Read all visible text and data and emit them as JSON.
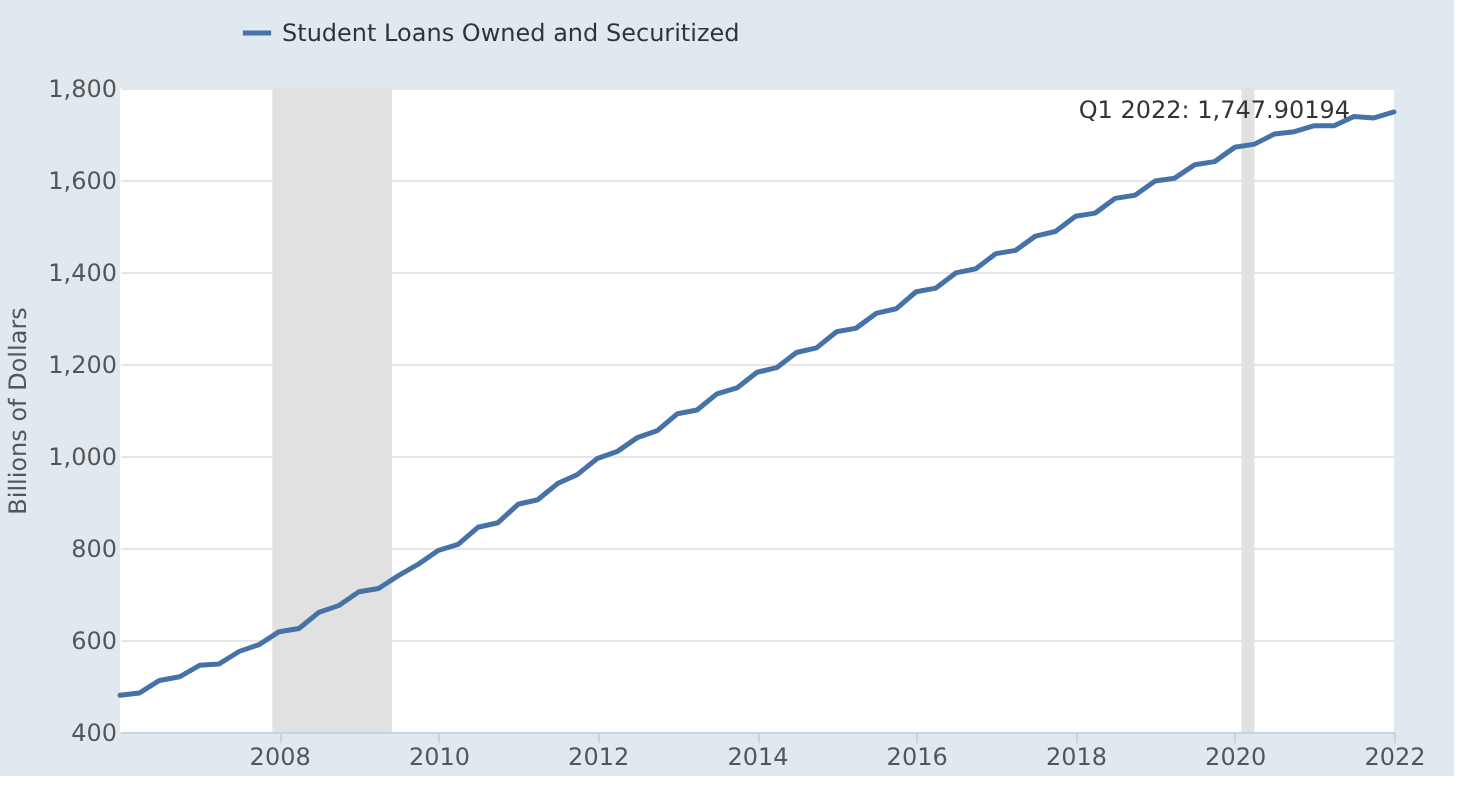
{
  "chart_data": {
    "type": "line",
    "ylabel": "Billions of Dollars",
    "x": [
      "2006-01",
      "2006-04",
      "2006-07",
      "2006-10",
      "2007-01",
      "2007-04",
      "2007-07",
      "2007-10",
      "2008-01",
      "2008-04",
      "2008-07",
      "2008-10",
      "2009-01",
      "2009-04",
      "2009-07",
      "2009-10",
      "2010-01",
      "2010-04",
      "2010-07",
      "2010-10",
      "2011-01",
      "2011-04",
      "2011-07",
      "2011-10",
      "2012-01",
      "2012-04",
      "2012-07",
      "2012-10",
      "2013-01",
      "2013-04",
      "2013-07",
      "2013-10",
      "2014-01",
      "2014-04",
      "2014-07",
      "2014-10",
      "2015-01",
      "2015-04",
      "2015-07",
      "2015-10",
      "2016-01",
      "2016-04",
      "2016-07",
      "2016-10",
      "2017-01",
      "2017-04",
      "2017-07",
      "2017-10",
      "2018-01",
      "2018-04",
      "2018-07",
      "2018-10",
      "2019-01",
      "2019-04",
      "2019-07",
      "2019-10",
      "2020-01",
      "2020-04",
      "2020-07",
      "2020-10",
      "2021-01",
      "2021-04",
      "2021-07",
      "2021-10",
      "2022-01"
    ],
    "series": [
      {
        "name": "Student Loans Owned and Securitized",
        "color": "#4572a7",
        "values": [
          480,
          485,
          512,
          520,
          545,
          548,
          575,
          590,
          618,
          625,
          660,
          675,
          705,
          712,
          740,
          765,
          795,
          808,
          845,
          855,
          895,
          905,
          940,
          960,
          995,
          1010,
          1040,
          1055,
          1092,
          1100,
          1135,
          1148,
          1182,
          1192,
          1225,
          1235,
          1270,
          1278,
          1310,
          1320,
          1357,
          1365,
          1398,
          1407,
          1440,
          1447,
          1478,
          1488,
          1521,
          1528,
          1560,
          1567,
          1598,
          1604,
          1633,
          1640,
          1671,
          1678,
          1700,
          1705,
          1718,
          1718,
          1738,
          1735,
          1747.90194
        ]
      }
    ],
    "xlim": [
      "2006-01",
      "2022-01"
    ],
    "xticks": [
      "2008",
      "2010",
      "2012",
      "2014",
      "2016",
      "2018",
      "2020",
      "2022"
    ],
    "ylim": [
      400,
      1800
    ],
    "yticks": [
      {
        "value": 400,
        "label": "400"
      },
      {
        "value": 600,
        "label": "600"
      },
      {
        "value": 800,
        "label": "800"
      },
      {
        "value": 1000,
        "label": "1,000"
      },
      {
        "value": 1200,
        "label": "1,200"
      },
      {
        "value": 1400,
        "label": "1,400"
      },
      {
        "value": 1600,
        "label": "1,600"
      },
      {
        "value": 1800,
        "label": "1,800"
      }
    ],
    "bands": [
      {
        "axis": "x",
        "from": "2007-12",
        "to": "2009-06",
        "color": "#e1e1e1"
      },
      {
        "axis": "x",
        "from": "2020-02",
        "to": "2020-04",
        "color": "#e1e1e1"
      }
    ],
    "annotations": [
      {
        "text": "Q1 2022: 1,747.90194",
        "x": "2022-01",
        "y": 1747.90194
      }
    ],
    "grid": "y",
    "legend": "top left",
    "line_style": "solid",
    "marker": "none"
  }
}
